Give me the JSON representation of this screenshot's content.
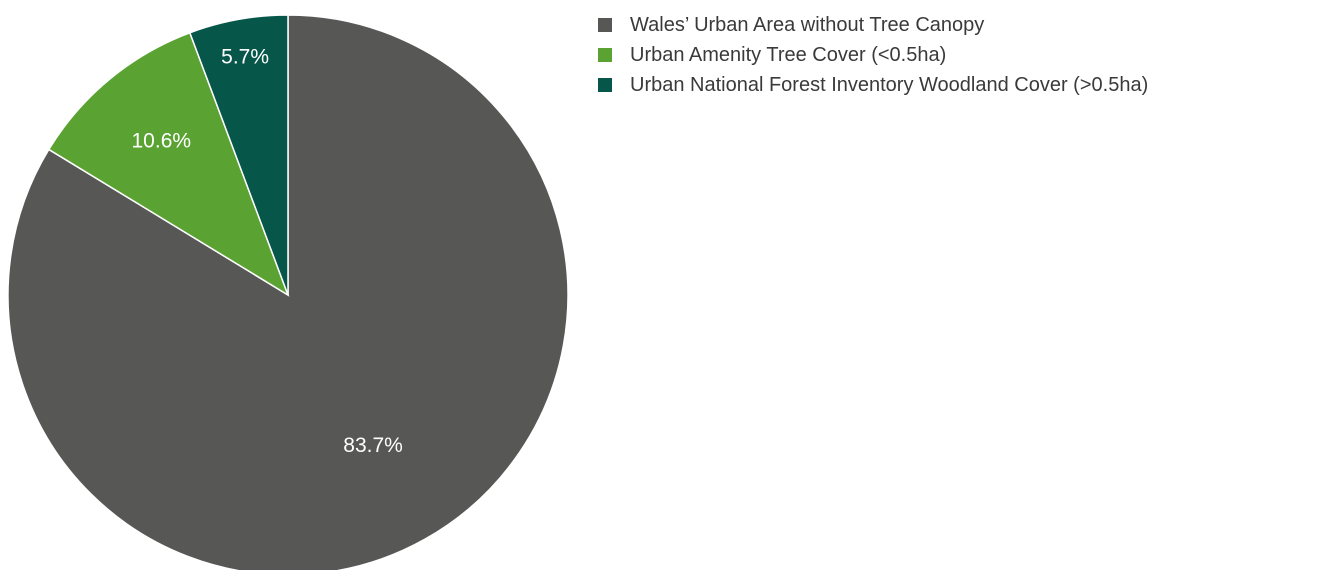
{
  "chart_data": {
    "type": "pie",
    "title": "",
    "start_angle_deg": 0,
    "direction": "clockwise",
    "slices": [
      {
        "label": "Wales’ Urban Area without Tree Canopy",
        "value": 83.7,
        "display": "83.7%",
        "color": "#575756"
      },
      {
        "label": "Urban Amenity Tree Cover (<0.5ha)",
        "value": 10.6,
        "display": "10.6%",
        "color": "#5aa332"
      },
      {
        "label": "Urban National Forest Inventory Woodland Cover (>0.5ha)",
        "value": 5.7,
        "display": "5.7%",
        "color": "#07564a"
      }
    ],
    "legend_position": "top-right",
    "slice_border_color": "#ffffff"
  }
}
